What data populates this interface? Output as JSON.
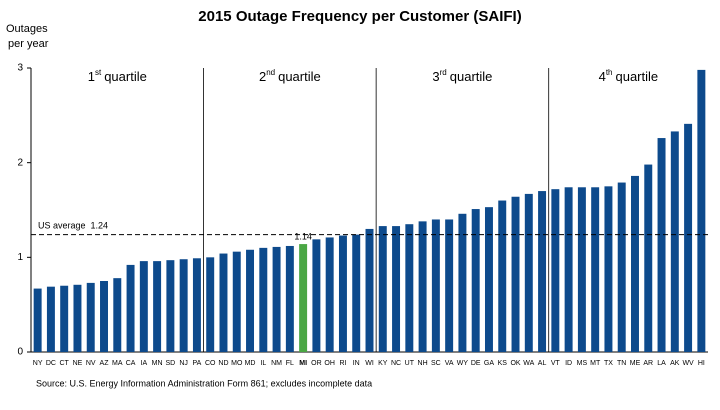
{
  "chart_data": {
    "type": "bar",
    "title": "2015 Outage Frequency per Customer (SAIFI)",
    "ylabel": [
      "Outages",
      "per year"
    ],
    "source": "Source: U.S. Energy Information  Administration Form 861; excludes incomplete data",
    "categories": [
      "NY",
      "DC",
      "CT",
      "NE",
      "NV",
      "AZ",
      "MA",
      "CA",
      "IA",
      "MN",
      "SD",
      "NJ",
      "PA",
      "CO",
      "ND",
      "MO",
      "MD",
      "IL",
      "NM",
      "FL",
      "MI",
      "OR",
      "OH",
      "RI",
      "IN",
      "WI",
      "KY",
      "NC",
      "UT",
      "NH",
      "SC",
      "VA",
      "WY",
      "DE",
      "GA",
      "KS",
      "OK",
      "WA",
      "AL",
      "VT",
      "ID",
      "MS",
      "MT",
      "TX",
      "TN",
      "ME",
      "AR",
      "LA",
      "AK",
      "WV",
      "HI"
    ],
    "values": [
      0.67,
      0.69,
      0.7,
      0.71,
      0.73,
      0.75,
      0.78,
      0.92,
      0.96,
      0.96,
      0.97,
      0.98,
      0.99,
      1.0,
      1.04,
      1.06,
      1.08,
      1.1,
      1.11,
      1.12,
      1.14,
      1.19,
      1.21,
      1.23,
      1.24,
      1.3,
      1.33,
      1.33,
      1.35,
      1.38,
      1.4,
      1.4,
      1.46,
      1.51,
      1.53,
      1.6,
      1.64,
      1.67,
      1.7,
      1.72,
      1.74,
      1.74,
      1.74,
      1.75,
      1.79,
      1.86,
      1.98,
      2.26,
      2.33,
      2.41,
      2.98
    ],
    "color": "#0d4a8c",
    "highlight": {
      "index": 20,
      "color": "#4aa744"
    },
    "ylim": [
      0,
      3
    ],
    "yticks": [
      0,
      1,
      2,
      3
    ],
    "reference_line": {
      "label": "US average",
      "value": 1.24
    },
    "quartiles": [
      {
        "ordinal": "1",
        "suffix": "st",
        "label": "quartile",
        "start": 0
      },
      {
        "ordinal": "2",
        "suffix": "nd",
        "label": "quartile",
        "start": 13
      },
      {
        "ordinal": "3",
        "suffix": "rd",
        "label": "quartile",
        "start": 26
      },
      {
        "ordinal": "4",
        "suffix": "th",
        "label": "quartile",
        "start": 39
      }
    ]
  }
}
